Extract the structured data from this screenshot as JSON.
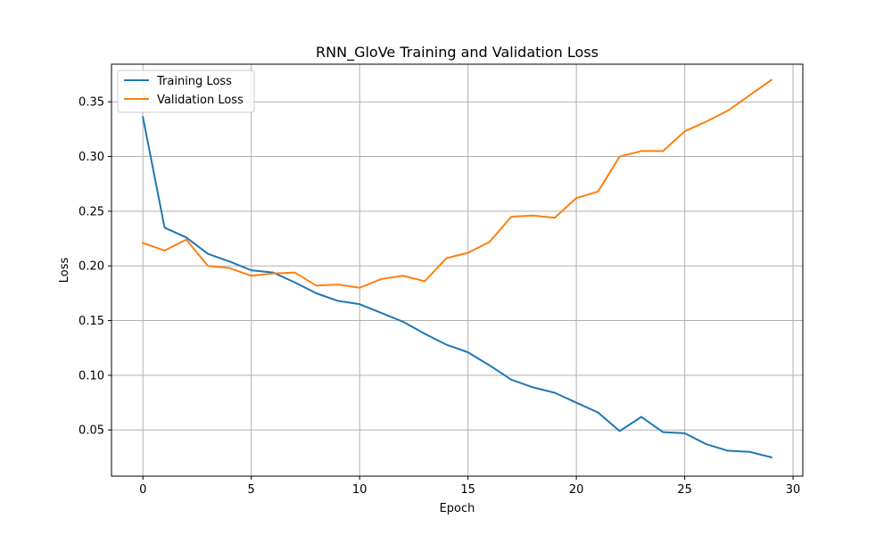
{
  "chart_data": {
    "type": "line",
    "title": "RNN_GloVe Training and Validation Loss",
    "xlabel": "Epoch",
    "ylabel": "Loss",
    "xlim": [
      -1.45,
      30.45
    ],
    "ylim": [
      0.0078,
      0.3844
    ],
    "xticks": [
      0,
      5,
      10,
      15,
      20,
      25,
      30
    ],
    "yticks": [
      0.05,
      0.1,
      0.15,
      0.2,
      0.25,
      0.3,
      0.35
    ],
    "grid": true,
    "legend_position": "top-left",
    "x": [
      0,
      1,
      2,
      3,
      4,
      5,
      6,
      7,
      8,
      9,
      10,
      11,
      12,
      13,
      14,
      15,
      16,
      17,
      18,
      19,
      20,
      21,
      22,
      23,
      24,
      25,
      26,
      27,
      28,
      29
    ],
    "series": [
      {
        "name": "Training Loss",
        "color": "#1f77b4",
        "values": [
          0.336,
          0.235,
          0.226,
          0.211,
          0.204,
          0.196,
          0.194,
          0.185,
          0.175,
          0.168,
          0.165,
          0.157,
          0.149,
          0.138,
          0.128,
          0.121,
          0.109,
          0.096,
          0.089,
          0.084,
          0.075,
          0.066,
          0.049,
          0.062,
          0.048,
          0.047,
          0.037,
          0.031,
          0.03,
          0.025
        ]
      },
      {
        "name": "Validation Loss",
        "color": "#ff7f0e",
        "values": [
          0.221,
          0.214,
          0.224,
          0.2,
          0.198,
          0.191,
          0.193,
          0.194,
          0.182,
          0.183,
          0.18,
          0.188,
          0.191,
          0.186,
          0.207,
          0.212,
          0.222,
          0.245,
          0.246,
          0.244,
          0.262,
          0.268,
          0.3,
          0.305,
          0.305,
          0.323,
          0.332,
          0.342,
          0.356,
          0.37
        ]
      }
    ]
  }
}
